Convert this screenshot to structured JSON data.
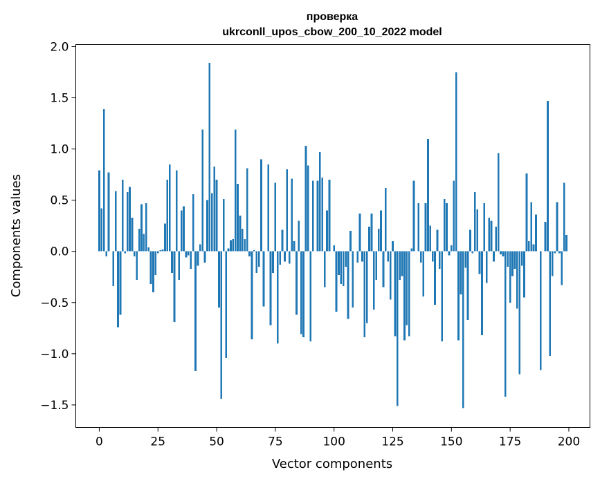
{
  "chart_data": {
    "type": "bar",
    "title_line1": "проверка",
    "title_line2": "ukrconll_upos_cbow_200_10_2022 model",
    "xlabel": "Vector components",
    "ylabel": "Components values",
    "xlim": [
      -10,
      209
    ],
    "ylim": [
      -1.72,
      2.02
    ],
    "xticks": [
      0,
      25,
      50,
      75,
      100,
      125,
      150,
      175,
      200
    ],
    "yticks": [
      -1.5,
      -1.0,
      -0.5,
      0.0,
      0.5,
      1.0,
      1.5,
      2.0
    ],
    "ytick_labels": [
      "−1.5",
      "−1.0",
      "−0.5",
      "0.0",
      "0.5",
      "1.0",
      "1.5",
      "2.0"
    ],
    "bar_color": "#1f77b4",
    "grid": false,
    "x": [
      0,
      1,
      2,
      3,
      4,
      5,
      6,
      7,
      8,
      9,
      10,
      11,
      12,
      13,
      14,
      15,
      16,
      17,
      18,
      19,
      20,
      21,
      22,
      23,
      24,
      25,
      26,
      27,
      28,
      29,
      30,
      31,
      32,
      33,
      34,
      35,
      36,
      37,
      38,
      39,
      40,
      41,
      42,
      43,
      44,
      45,
      46,
      47,
      48,
      49,
      50,
      51,
      52,
      53,
      54,
      55,
      56,
      57,
      58,
      59,
      60,
      61,
      62,
      63,
      64,
      65,
      66,
      67,
      68,
      69,
      70,
      71,
      72,
      73,
      74,
      75,
      76,
      77,
      78,
      79,
      80,
      81,
      82,
      83,
      84,
      85,
      86,
      87,
      88,
      89,
      90,
      91,
      92,
      93,
      94,
      95,
      96,
      97,
      98,
      99,
      100,
      101,
      102,
      103,
      104,
      105,
      106,
      107,
      108,
      109,
      110,
      111,
      112,
      113,
      114,
      115,
      116,
      117,
      118,
      119,
      120,
      121,
      122,
      123,
      124,
      125,
      126,
      127,
      128,
      129,
      130,
      131,
      132,
      133,
      134,
      135,
      136,
      137,
      138,
      139,
      140,
      141,
      142,
      143,
      144,
      145,
      146,
      147,
      148,
      149,
      150,
      151,
      152,
      153,
      154,
      155,
      156,
      157,
      158,
      159,
      160,
      161,
      162,
      163,
      164,
      165,
      166,
      167,
      168,
      169,
      170,
      171,
      172,
      173,
      174,
      175,
      176,
      177,
      178,
      179,
      180,
      181,
      182,
      183,
      184,
      185,
      186,
      187,
      188,
      189,
      190,
      191,
      192,
      193,
      194,
      195,
      196,
      197,
      198,
      199
    ],
    "values": [
      0.79,
      0.42,
      1.39,
      -0.05,
      0.77,
      0.0,
      -0.34,
      0.59,
      -0.74,
      -0.62,
      0.7,
      -0.02,
      0.58,
      0.63,
      0.33,
      -0.05,
      -0.28,
      0.22,
      0.46,
      0.17,
      0.47,
      0.04,
      -0.32,
      -0.4,
      -0.23,
      -0.02,
      0.01,
      0.02,
      0.27,
      0.7,
      0.85,
      -0.21,
      -0.69,
      0.79,
      -0.28,
      0.4,
      0.44,
      -0.06,
      -0.04,
      -0.17,
      0.56,
      -1.17,
      -0.14,
      0.07,
      1.19,
      -0.11,
      0.5,
      1.84,
      0.57,
      0.83,
      0.7,
      -0.55,
      -1.44,
      0.51,
      -1.04,
      0.03,
      0.11,
      0.12,
      1.19,
      0.66,
      0.35,
      0.22,
      0.12,
      0.81,
      -0.05,
      -0.86,
      0.01,
      -0.21,
      -0.15,
      0.9,
      -0.54,
      0.0,
      0.85,
      -0.72,
      -0.21,
      0.67,
      -0.9,
      -0.13,
      0.21,
      -0.1,
      0.8,
      -0.12,
      0.71,
      0.1,
      -0.62,
      0.3,
      -0.81,
      -0.84,
      1.03,
      0.84,
      -0.88,
      0.69,
      0.0,
      0.69,
      0.97,
      0.72,
      -0.35,
      0.4,
      0.7,
      0.0,
      0.06,
      -0.59,
      -0.23,
      -0.32,
      -0.34,
      -0.15,
      -0.66,
      0.2,
      -0.55,
      0.0,
      -0.11,
      0.37,
      -0.1,
      -0.84,
      -0.7,
      0.24,
      0.37,
      -0.57,
      -0.28,
      0.22,
      0.4,
      -0.35,
      0.62,
      -0.1,
      -0.47,
      0.1,
      -0.83,
      -1.51,
      -0.28,
      -0.24,
      -0.87,
      -0.72,
      -0.83,
      0.03,
      0.69,
      0.0,
      0.47,
      -0.11,
      -0.44,
      0.47,
      1.1,
      0.25,
      -0.1,
      -0.52,
      0.21,
      -0.17,
      -0.88,
      0.51,
      0.47,
      -0.04,
      0.06,
      0.69,
      1.75,
      -0.87,
      -0.42,
      -1.53,
      -0.16,
      -0.67,
      0.21,
      -0.02,
      0.58,
      0.41,
      -0.22,
      -0.82,
      0.47,
      -0.31,
      0.33,
      0.3,
      -0.1,
      0.24,
      0.96,
      -0.03,
      -0.05,
      -1.42,
      -0.15,
      -0.5,
      -0.24,
      -0.17,
      -0.56,
      -1.2,
      -0.14,
      -0.45,
      0.76,
      0.1,
      0.48,
      0.07,
      0.36,
      0.0,
      -1.16,
      0.0,
      0.29,
      1.47,
      -1.02,
      -0.24,
      -0.02,
      0.48,
      -0.02,
      -0.33,
      0.67,
      0.16
    ]
  }
}
